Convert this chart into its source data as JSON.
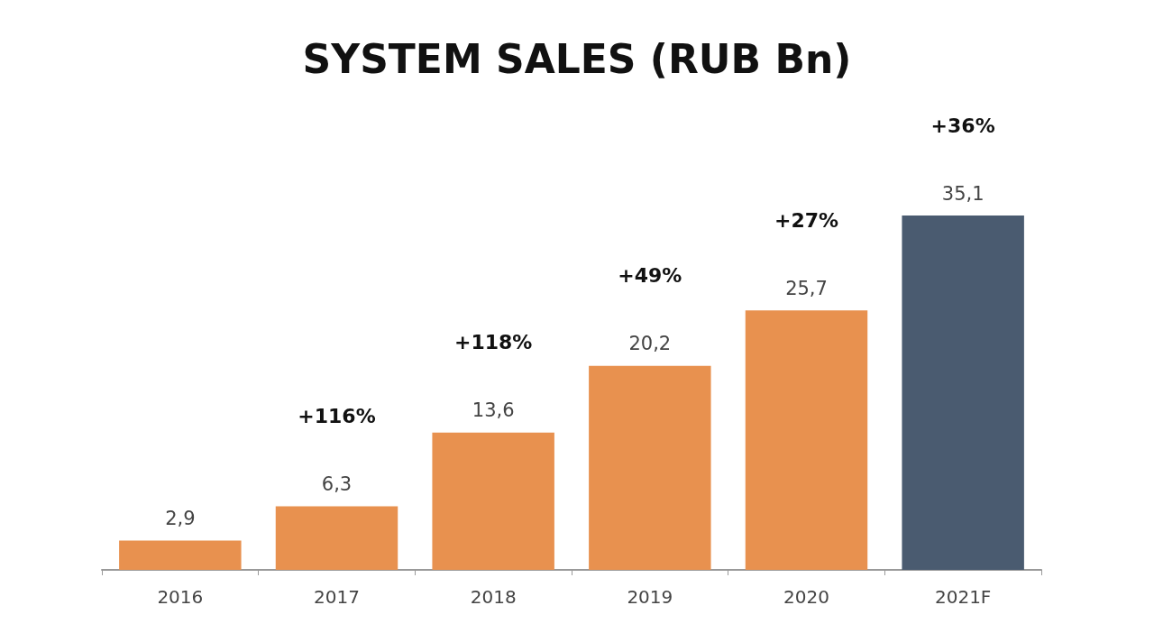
{
  "chart_data": {
    "type": "bar",
    "title": "SYSTEM SALES (RUB Bn)",
    "categories": [
      "2016",
      "2017",
      "2018",
      "2019",
      "2020",
      "2021F"
    ],
    "values": [
      2.9,
      6.3,
      13.6,
      20.2,
      25.7,
      35.1
    ],
    "colors": [
      "#e8914f",
      "#e8914f",
      "#e8914f",
      "#e8914f",
      "#e8914f",
      "#4a5b70"
    ],
    "value_labels": [
      "2,9",
      "6,3",
      "13,6",
      "20,2",
      "25,7",
      "35,1"
    ],
    "annotations": [
      "+116%",
      "+118%",
      "+49%",
      "+27%",
      "+36%"
    ]
  }
}
